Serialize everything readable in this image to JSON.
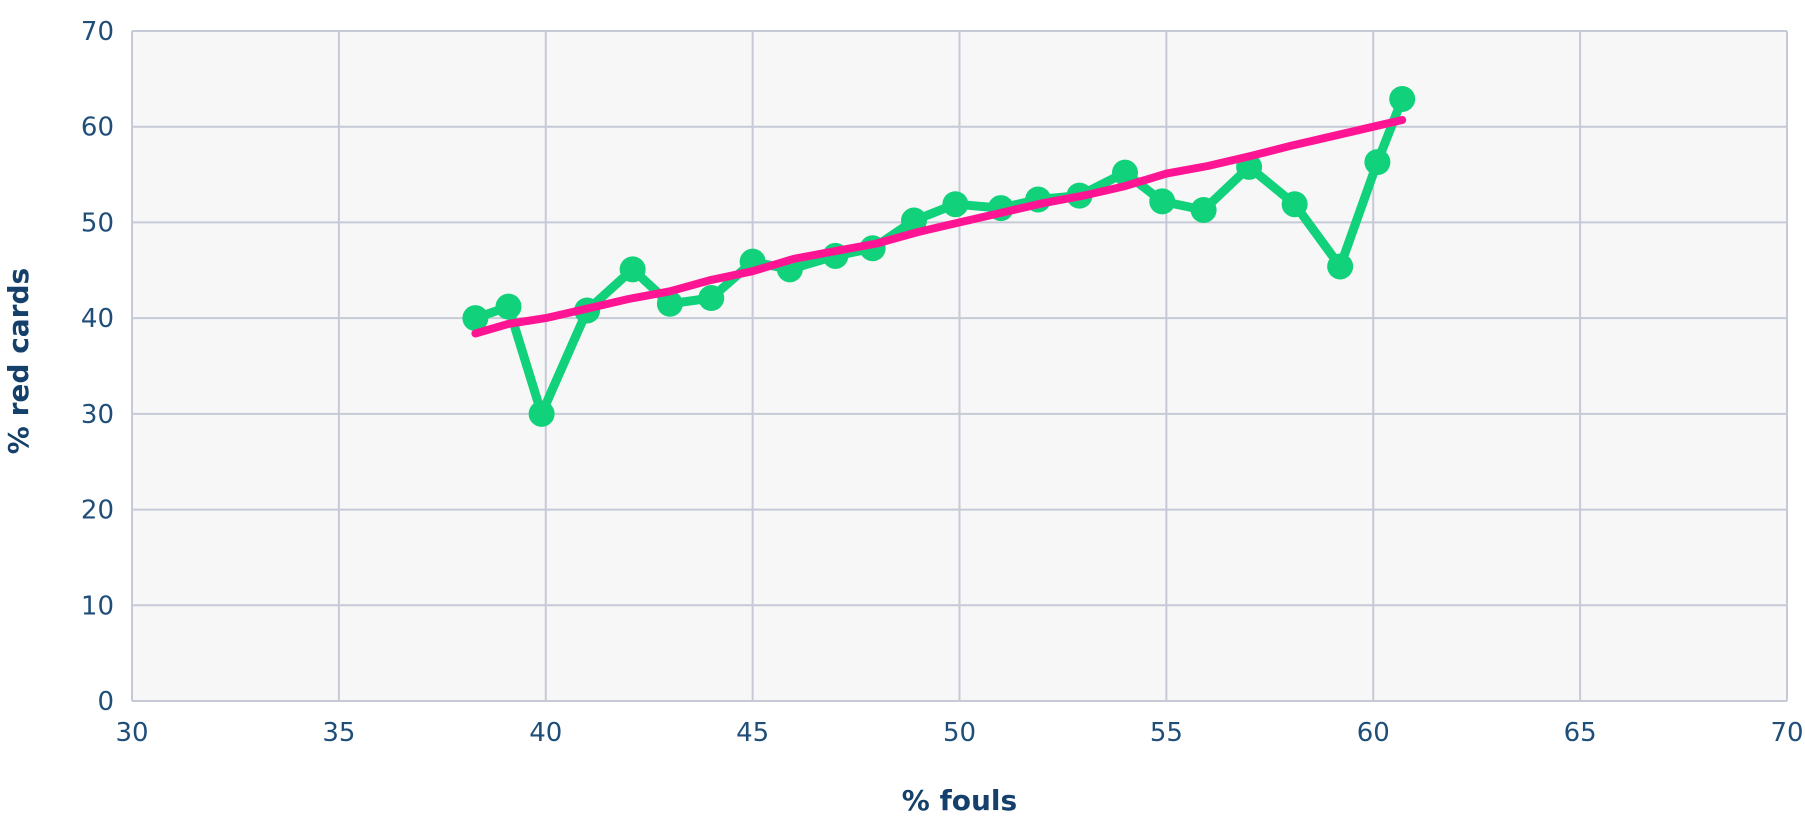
{
  "chart_data": {
    "type": "scatter",
    "title": "",
    "xlabel": "% fouls",
    "ylabel": "% red cards",
    "xlim": [
      30,
      70
    ],
    "ylim": [
      0,
      70
    ],
    "x_ticks": [
      30,
      35,
      40,
      45,
      50,
      55,
      60,
      65,
      70
    ],
    "y_ticks": [
      0,
      10,
      20,
      30,
      40,
      50,
      60,
      70
    ],
    "grid": true,
    "legend": "none",
    "colors": {
      "plot_background": "#f7f7f8",
      "grid": "#c5cad6",
      "observed": "#11d17a",
      "fit": "#ff1493",
      "tick_text": "#1f4e79",
      "axis_title": "#14406b"
    },
    "series": [
      {
        "style": "line-markers",
        "points": [
          [
            38.3,
            40.0
          ],
          [
            39.1,
            41.2
          ],
          [
            39.9,
            30.0
          ],
          [
            41.0,
            40.8
          ],
          [
            42.1,
            45.1
          ],
          [
            43.0,
            41.5
          ],
          [
            44.0,
            42.1
          ],
          [
            45.0,
            45.9
          ],
          [
            45.9,
            45.1
          ],
          [
            47.0,
            46.5
          ],
          [
            47.9,
            47.3
          ],
          [
            48.9,
            50.2
          ],
          [
            49.9,
            51.9
          ],
          [
            51.0,
            51.5
          ],
          [
            51.9,
            52.4
          ],
          [
            52.9,
            52.8
          ],
          [
            54.0,
            55.2
          ],
          [
            54.9,
            52.2
          ],
          [
            55.9,
            51.3
          ],
          [
            57.0,
            55.8
          ],
          [
            58.1,
            51.9
          ],
          [
            59.2,
            45.4
          ],
          [
            60.1,
            56.3
          ],
          [
            60.7,
            62.9
          ]
        ]
      },
      {
        "style": "line",
        "points": [
          [
            38.3,
            38.4
          ],
          [
            39.1,
            39.4
          ],
          [
            40.0,
            40.0
          ],
          [
            41.0,
            41.0
          ],
          [
            42.0,
            42.0
          ],
          [
            43.0,
            42.8
          ],
          [
            44.0,
            44.0
          ],
          [
            45.0,
            44.9
          ],
          [
            46.0,
            46.2
          ],
          [
            47.0,
            47.0
          ],
          [
            48.0,
            47.8
          ],
          [
            49.0,
            49.0
          ],
          [
            50.0,
            50.0
          ],
          [
            51.0,
            51.0
          ],
          [
            52.0,
            52.0
          ],
          [
            53.0,
            52.8
          ],
          [
            54.0,
            53.8
          ],
          [
            55.0,
            55.1
          ],
          [
            56.0,
            55.9
          ],
          [
            57.0,
            56.9
          ],
          [
            58.0,
            58.0
          ],
          [
            59.0,
            59.0
          ],
          [
            60.0,
            60.0
          ],
          [
            60.7,
            60.7
          ]
        ]
      }
    ]
  }
}
